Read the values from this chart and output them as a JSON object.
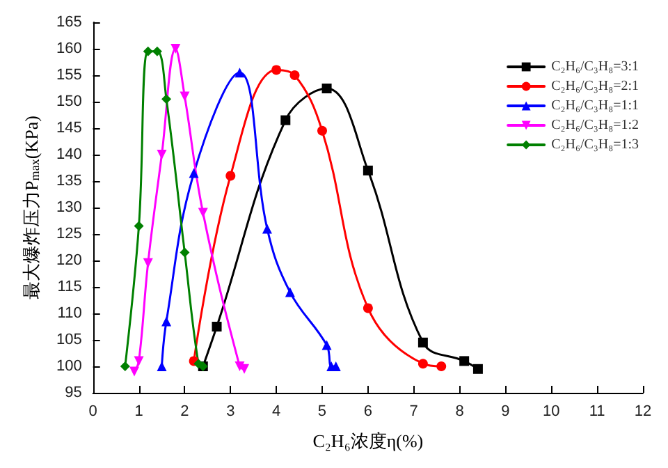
{
  "chart_data": {
    "type": "line",
    "xlabel": "C₂H₆浓度η(%)",
    "ylabel": "最大爆炸压力P$_{max}$(KPa)",
    "xlim": [
      0,
      12
    ],
    "xticks": [
      0,
      1,
      2,
      3,
      4,
      5,
      6,
      7,
      8,
      9,
      10,
      11,
      12
    ],
    "ylim": [
      95,
      165
    ],
    "yticks": [
      95,
      100,
      105,
      110,
      115,
      120,
      125,
      130,
      135,
      140,
      145,
      150,
      155,
      160,
      165
    ],
    "grid": false,
    "legend": "top right",
    "line_style": "solid",
    "series": [
      {
        "name": "C₂H₆/C₃H₈=3:1",
        "color": "#000000",
        "marker": "square",
        "x": [
          2.4,
          2.7,
          4.2,
          5.1,
          6.0,
          7.2,
          8.1,
          8.4
        ],
        "values": [
          100,
          107.5,
          146.5,
          152.5,
          137,
          104.5,
          101,
          99.5
        ]
      },
      {
        "name": "C₂H₆/C₃H₈=2:1",
        "color": "#ff0000",
        "marker": "circle",
        "x": [
          2.2,
          3.0,
          4.0,
          4.4,
          5.0,
          6.0,
          7.2,
          7.6
        ],
        "values": [
          101,
          136,
          156,
          155,
          144.5,
          111,
          100.5,
          100
        ]
      },
      {
        "name": "C₂H₆/C₃H₈=1:1",
        "color": "#0000ff",
        "marker": "triangle",
        "x": [
          1.5,
          1.6,
          2.2,
          3.2,
          3.8,
          4.3,
          5.1,
          5.2,
          5.3
        ],
        "values": [
          100,
          108.5,
          136.5,
          155.5,
          126,
          114,
          104,
          100,
          100
        ]
      },
      {
        "name": "C₂H₆/C₃H₈=1:2",
        "color": "#ff00ff",
        "marker": "triangle-down",
        "x": [
          0.9,
          1.0,
          1.2,
          1.5,
          1.8,
          2.0,
          2.4,
          3.2,
          3.3
        ],
        "values": [
          99,
          101,
          119.5,
          140,
          160,
          151,
          129,
          100,
          99.5
        ]
      },
      {
        "name": "C₂H₆/C₃H₈=1:3",
        "color": "#008000",
        "marker": "diamond",
        "x": [
          0.7,
          1.0,
          1.2,
          1.4,
          1.6,
          2.0,
          2.3,
          2.4
        ],
        "values": [
          100,
          126.5,
          159.5,
          159.5,
          150.5,
          121.5,
          100.5,
          100
        ]
      }
    ]
  }
}
